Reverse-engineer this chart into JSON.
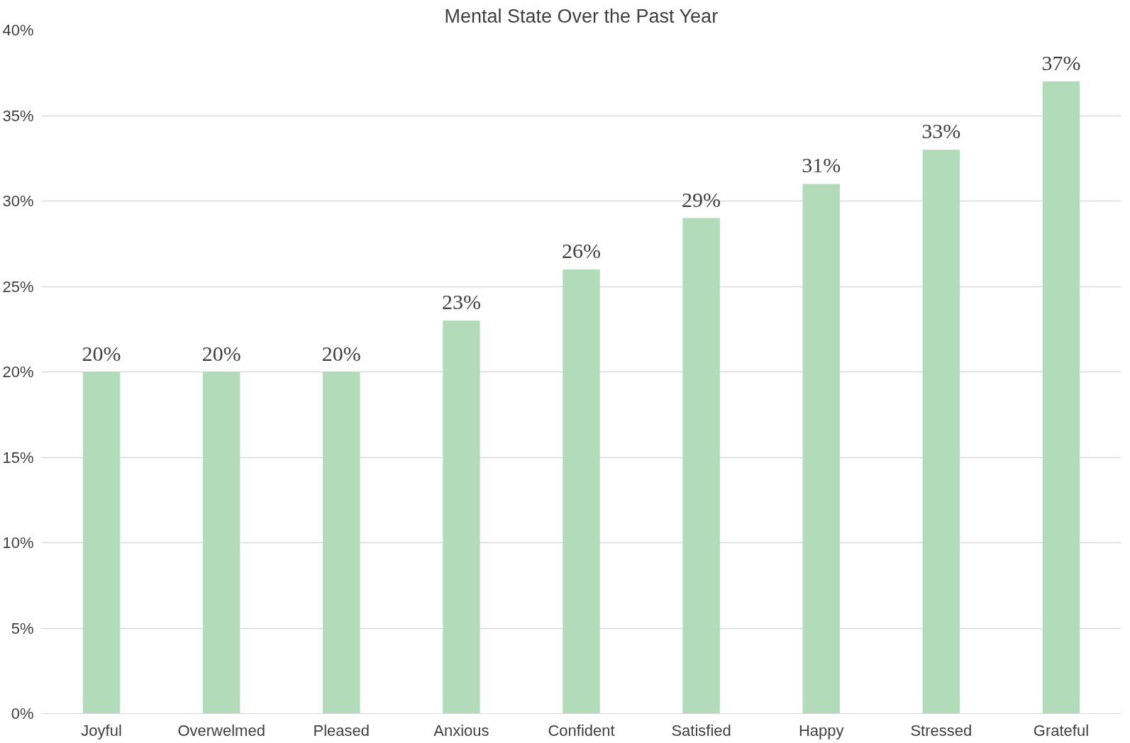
{
  "chart_data": {
    "type": "bar",
    "title": "Mental State Over the Past Year",
    "categories": [
      "Joyful",
      "Overwelmed",
      "Pleased",
      "Anxious",
      "Confident",
      "Satisfied",
      "Happy",
      "Stressed",
      "Grateful"
    ],
    "values": [
      20,
      20,
      20,
      23,
      26,
      29,
      31,
      33,
      37
    ],
    "value_labels": [
      "20%",
      "20%",
      "20%",
      "23%",
      "26%",
      "29%",
      "31%",
      "33%",
      "37%"
    ],
    "color": "#b1dbb9",
    "ylim": [
      0,
      40
    ],
    "yticks": [
      {
        "value": 0,
        "label": "0%"
      },
      {
        "value": 5,
        "label": "5%"
      },
      {
        "value": 10,
        "label": "10%"
      },
      {
        "value": 15,
        "label": "15%"
      },
      {
        "value": 20,
        "label": "20%"
      },
      {
        "value": 25,
        "label": "25%"
      },
      {
        "value": 30,
        "label": "30%"
      },
      {
        "value": 35,
        "label": "35%"
      },
      {
        "value": 40,
        "label": "40%"
      }
    ],
    "grid": "y"
  }
}
